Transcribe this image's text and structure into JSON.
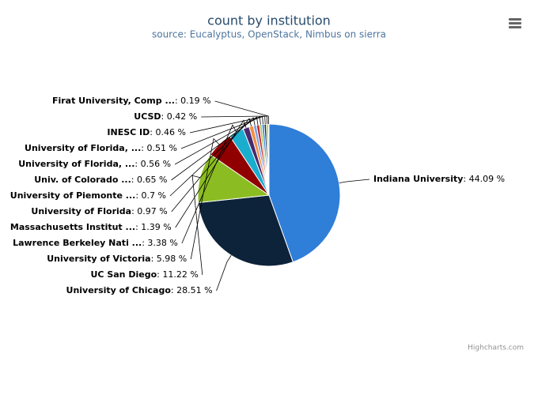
{
  "chart_data": {
    "type": "pie",
    "title": "count by institution",
    "subtitle": "source: Eucalyptus, OpenStack, Nimbus on sierra",
    "categories": [
      "Indiana University",
      "University of Chicago",
      "UC San Diego",
      "University of Victoria",
      "Lawrence Berkeley Nati ...",
      "Massachusetts Institut ...",
      "University of Florida",
      "University of Piemonte ...",
      "Univ. of Colorado ...",
      "University of Florida, ...",
      "University of Florida, ...",
      "INESC ID",
      "UCSD",
      "Firat University, Comp ..."
    ],
    "values": [
      44.09,
      28.51,
      11.22,
      5.98,
      3.38,
      1.39,
      0.97,
      0.7,
      0.65,
      0.56,
      0.51,
      0.46,
      0.42,
      0.19
    ],
    "value_labels": [
      ": 44.09 %",
      ": 28.51 %",
      ": 11.22 %",
      ": 5.98 %",
      ": 3.38 %",
      ": 1.39 %",
      ": 0.97 %",
      ": 0.7 %",
      ": 0.65 %",
      ": 0.56 %",
      ": 0.51 %",
      ": 0.46 %",
      ": 0.42 %",
      ": 0.19 %"
    ],
    "colors": [
      "#2f7ed8",
      "#0d233a",
      "#8bbc21",
      "#910000",
      "#1aadce",
      "#492970",
      "#f28f43",
      "#77a1e5",
      "#c42525",
      "#a6c96a",
      "#2f7ed8",
      "#0d233a",
      "#8bbc21",
      "#910000"
    ],
    "credits": "Highcharts.com"
  }
}
